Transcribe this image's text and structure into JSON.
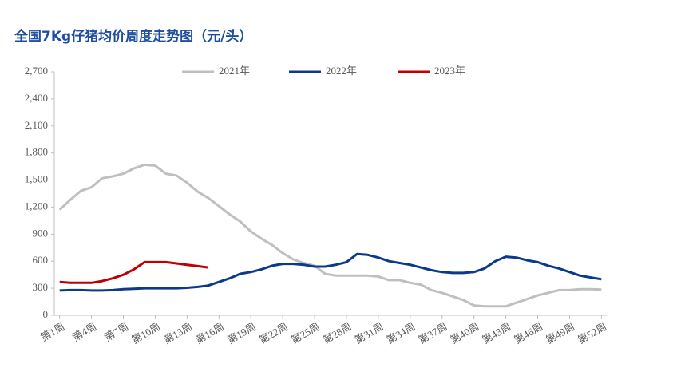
{
  "chart_data": {
    "type": "line",
    "title": "全国7Kg仔猪均价周度走势图（元/头）",
    "categories": [
      "第1周",
      null,
      null,
      "第4周",
      null,
      null,
      "第7周",
      null,
      null,
      "第10周",
      null,
      null,
      "第13周",
      null,
      null,
      "第16周",
      null,
      null,
      "第19周",
      null,
      null,
      "第22周",
      null,
      null,
      "第25周",
      null,
      null,
      "第28周",
      null,
      null,
      "第31周",
      null,
      null,
      "第34周",
      null,
      null,
      "第37周",
      null,
      null,
      "第40周",
      null,
      null,
      "第43周",
      null,
      null,
      "第46周",
      null,
      null,
      "第49周",
      null,
      null,
      "第52周"
    ],
    "series": [
      {
        "name": "2021年",
        "color": "#bfbfbf",
        "values": [
          1170,
          1280,
          1380,
          1420,
          1520,
          1540,
          1570,
          1630,
          1670,
          1660,
          1570,
          1550,
          1470,
          1370,
          1300,
          1210,
          1120,
          1040,
          930,
          850,
          780,
          690,
          620,
          580,
          550,
          460,
          440,
          440,
          440,
          440,
          430,
          390,
          390,
          360,
          340,
          280,
          250,
          210,
          170,
          110,
          100,
          100,
          100,
          140,
          180,
          220,
          250,
          280,
          280,
          290,
          290,
          285
        ]
      },
      {
        "name": "2022年",
        "color": "#0b3a8a",
        "values": [
          275,
          280,
          280,
          275,
          275,
          280,
          290,
          295,
          300,
          300,
          300,
          300,
          305,
          315,
          330,
          370,
          410,
          460,
          480,
          510,
          550,
          570,
          570,
          560,
          540,
          540,
          560,
          590,
          680,
          670,
          640,
          600,
          580,
          560,
          530,
          500,
          480,
          470,
          470,
          480,
          520,
          600,
          650,
          640,
          610,
          590,
          550,
          520,
          480,
          440,
          420,
          400
        ]
      },
      {
        "name": "2023年",
        "color": "#c00000",
        "values": [
          370,
          360,
          360,
          360,
          380,
          410,
          450,
          510,
          590,
          590,
          590,
          575,
          560,
          545,
          530,
          null,
          null,
          null,
          null,
          null,
          null,
          null,
          null,
          null,
          null,
          null,
          null,
          null,
          null,
          null,
          null,
          null,
          null,
          null,
          null,
          null,
          null,
          null,
          null,
          null,
          null,
          null,
          null,
          null,
          null,
          null,
          null,
          null,
          null,
          null,
          null,
          null
        ]
      }
    ],
    "ylim": [
      0,
      2700
    ],
    "yticks": [
      0,
      300,
      600,
      900,
      {
        "value": 1200,
        "label": "1,200"
      },
      {
        "value": 1500,
        "label": "1,500"
      },
      {
        "value": 1800,
        "label": "1,800"
      },
      {
        "value": 2100,
        "label": "2,100"
      },
      {
        "value": 2400,
        "label": "2,400"
      },
      {
        "value": 2700,
        "label": "2,700"
      }
    ],
    "legend": "top"
  }
}
